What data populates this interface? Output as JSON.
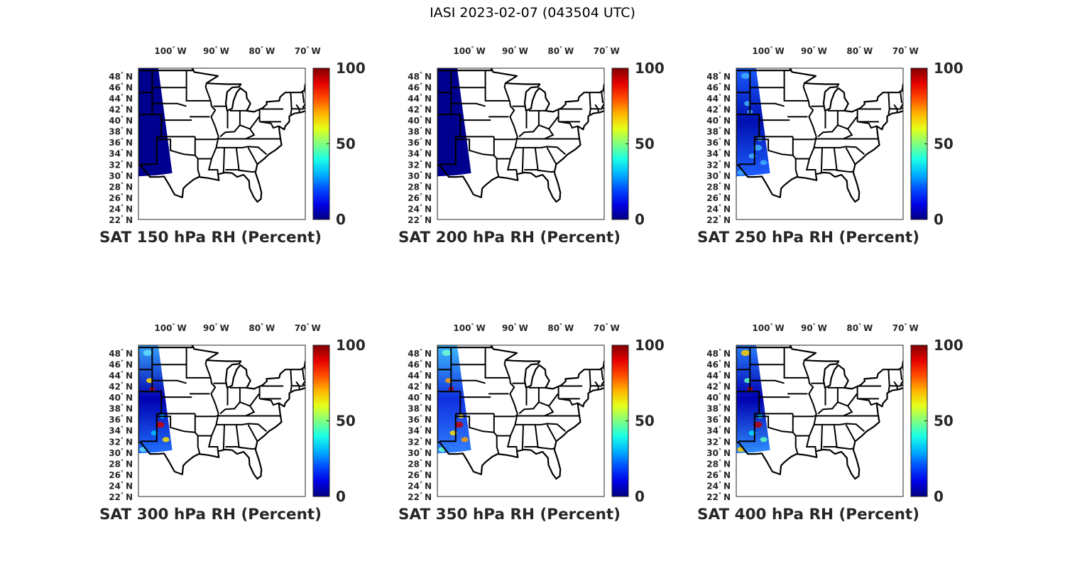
{
  "figure_title": "IASI 2023-02-07 (043504 UTC)",
  "lon_ticks": [
    {
      "value": 100,
      "label": "100",
      "hemi": "W"
    },
    {
      "value": 90,
      "label": "90",
      "hemi": "W"
    },
    {
      "value": 80,
      "label": "80",
      "hemi": "W"
    },
    {
      "value": 70,
      "label": "70",
      "hemi": "W"
    }
  ],
  "lat_ticks": [
    {
      "value": 48,
      "label": "48",
      "hemi": "N"
    },
    {
      "value": 46,
      "label": "46",
      "hemi": "N"
    },
    {
      "value": 44,
      "label": "44",
      "hemi": "N"
    },
    {
      "value": 42,
      "label": "42",
      "hemi": "N"
    },
    {
      "value": 40,
      "label": "40",
      "hemi": "N"
    },
    {
      "value": 38,
      "label": "38",
      "hemi": "N"
    },
    {
      "value": 36,
      "label": "36",
      "hemi": "N"
    },
    {
      "value": 34,
      "label": "34",
      "hemi": "N"
    },
    {
      "value": 32,
      "label": "32",
      "hemi": "N"
    },
    {
      "value": 30,
      "label": "30",
      "hemi": "N"
    },
    {
      "value": 28,
      "label": "28",
      "hemi": "N"
    },
    {
      "value": 26,
      "label": "26",
      "hemi": "N"
    },
    {
      "value": 24,
      "label": "24",
      "hemi": "N"
    },
    {
      "value": 22,
      "label": "22",
      "hemi": "N"
    }
  ],
  "degree_symbol": "°",
  "colorbar": {
    "colormap": "jet",
    "range": [
      0,
      100
    ],
    "ticks": [
      {
        "value": 0,
        "label": "0"
      },
      {
        "value": 50,
        "label": "50"
      },
      {
        "value": 100,
        "label": "100"
      }
    ]
  },
  "panels": [
    {
      "title": "SAT 150 hPa RH (Percent)",
      "swath_colors": [
        "#00008f",
        "#00008f",
        "#00008f"
      ],
      "highlights": []
    },
    {
      "title": "SAT 200 hPa RH (Percent)",
      "swath_colors": [
        "#00008f",
        "#00008f",
        "#00008f"
      ],
      "highlights": []
    },
    {
      "title": "SAT 250 hPa RH (Percent)",
      "swath_colors": [
        "#1a5cff",
        "#0010b0",
        "#1e60ff"
      ],
      "highlights": [
        "#40b0ff"
      ]
    },
    {
      "title": "SAT 300 hPa RH (Percent)",
      "swath_colors": [
        "#3aa8ff",
        "#0000b0",
        "#2070ff"
      ],
      "highlights": [
        "#60e0ff",
        "#ffe000",
        "#d00000",
        "#00c0ff"
      ]
    },
    {
      "title": "SAT 350 hPa RH (Percent)",
      "swath_colors": [
        "#40c0ff",
        "#1030e0",
        "#3080ff"
      ],
      "highlights": [
        "#70ffd0",
        "#ffa000",
        "#c00000",
        "#ffe000"
      ]
    },
    {
      "title": "SAT 400 hPa RH (Percent)",
      "swath_colors": [
        "#2a80ff",
        "#0000b0",
        "#3090ff"
      ],
      "highlights": [
        "#ffd000",
        "#60ffc0",
        "#c00000",
        "#00e0ff"
      ]
    }
  ]
}
